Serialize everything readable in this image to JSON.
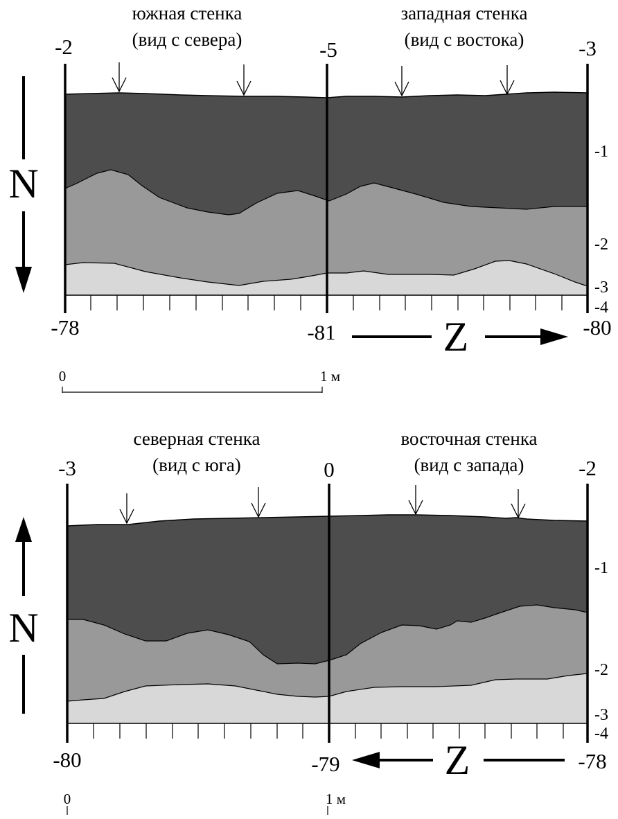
{
  "colors": {
    "layer_top": "#4d4d4d",
    "layer_mid": "#999999",
    "layer_bottom": "#d8d8d8",
    "ink": "#000000"
  },
  "profiles": [
    {
      "walls": [
        {
          "title": "южная стенка",
          "view": "(вид с севера)"
        },
        {
          "title": "западная стенка",
          "view": "(вид с востока)"
        }
      ],
      "top_labels": [
        "-2",
        "-5",
        "-3"
      ],
      "bottom_labels": [
        "-78",
        "-81",
        "-80"
      ],
      "depth_labels": [
        "-1",
        "-2",
        "-3",
        "-4"
      ],
      "north_letter": "N",
      "north_arrow_direction": "down",
      "z_letter": "Z",
      "z_arrow_direction": "right",
      "scale": {
        "start": "0",
        "end": "1 м"
      }
    },
    {
      "walls": [
        {
          "title": "северная стенка",
          "view": "(вид с юга)"
        },
        {
          "title": "восточная стенка",
          "view": "(вид с запада)"
        }
      ],
      "top_labels": [
        "-3",
        "0",
        "-2"
      ],
      "bottom_labels": [
        "-80",
        "-79",
        "-78"
      ],
      "depth_labels": [
        "-1",
        "-2",
        "-3",
        "-4"
      ],
      "north_letter": "N",
      "north_arrow_direction": "up",
      "z_letter": "Z",
      "z_arrow_direction": "left",
      "scale": {
        "start": "0",
        "end": "1 м"
      }
    }
  ]
}
